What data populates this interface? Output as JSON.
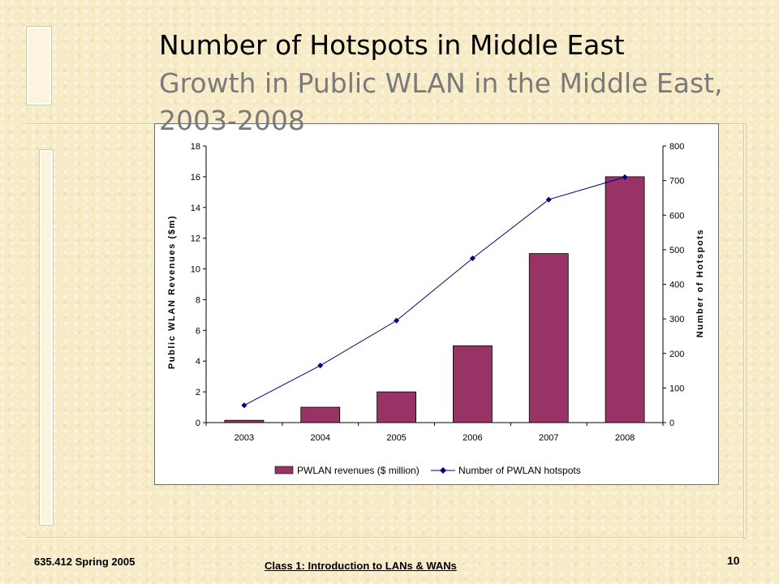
{
  "slide": {
    "title": "Number of Hotspots in Middle East",
    "subtitle": "Growth in Public WLAN in the Middle East, 2003-2008",
    "footer_left": "635.412 Spring 2005",
    "footer_center": "Class 1:  Introduction to LANs & WANs",
    "page_number": "10"
  },
  "chart_data": {
    "type": "bar",
    "categories": [
      "2003",
      "2004",
      "2005",
      "2006",
      "2007",
      "2008"
    ],
    "series": [
      {
        "name": "PWLAN revenues ($ million)",
        "type": "bar",
        "axis": "left",
        "color": "#993366",
        "values": [
          0.15,
          1,
          2,
          5,
          11,
          16
        ]
      },
      {
        "name": "Number of PWLAN hotspots",
        "type": "line",
        "axis": "right",
        "color": "#000080",
        "values": [
          50,
          165,
          295,
          475,
          645,
          710
        ]
      }
    ],
    "ylabel": "Public WLAN Revenues ($m)",
    "y2label": "Number of Hotspots",
    "ylim": [
      0,
      18
    ],
    "yticks": [
      "0",
      "2",
      "4",
      "6",
      "8",
      "10",
      "12",
      "14",
      "16",
      "18"
    ],
    "y2lim": [
      0,
      800
    ],
    "y2ticks": [
      "0",
      "100",
      "200",
      "300",
      "400",
      "500",
      "600",
      "700",
      "800"
    ],
    "grid": false,
    "legend": "bottom"
  }
}
